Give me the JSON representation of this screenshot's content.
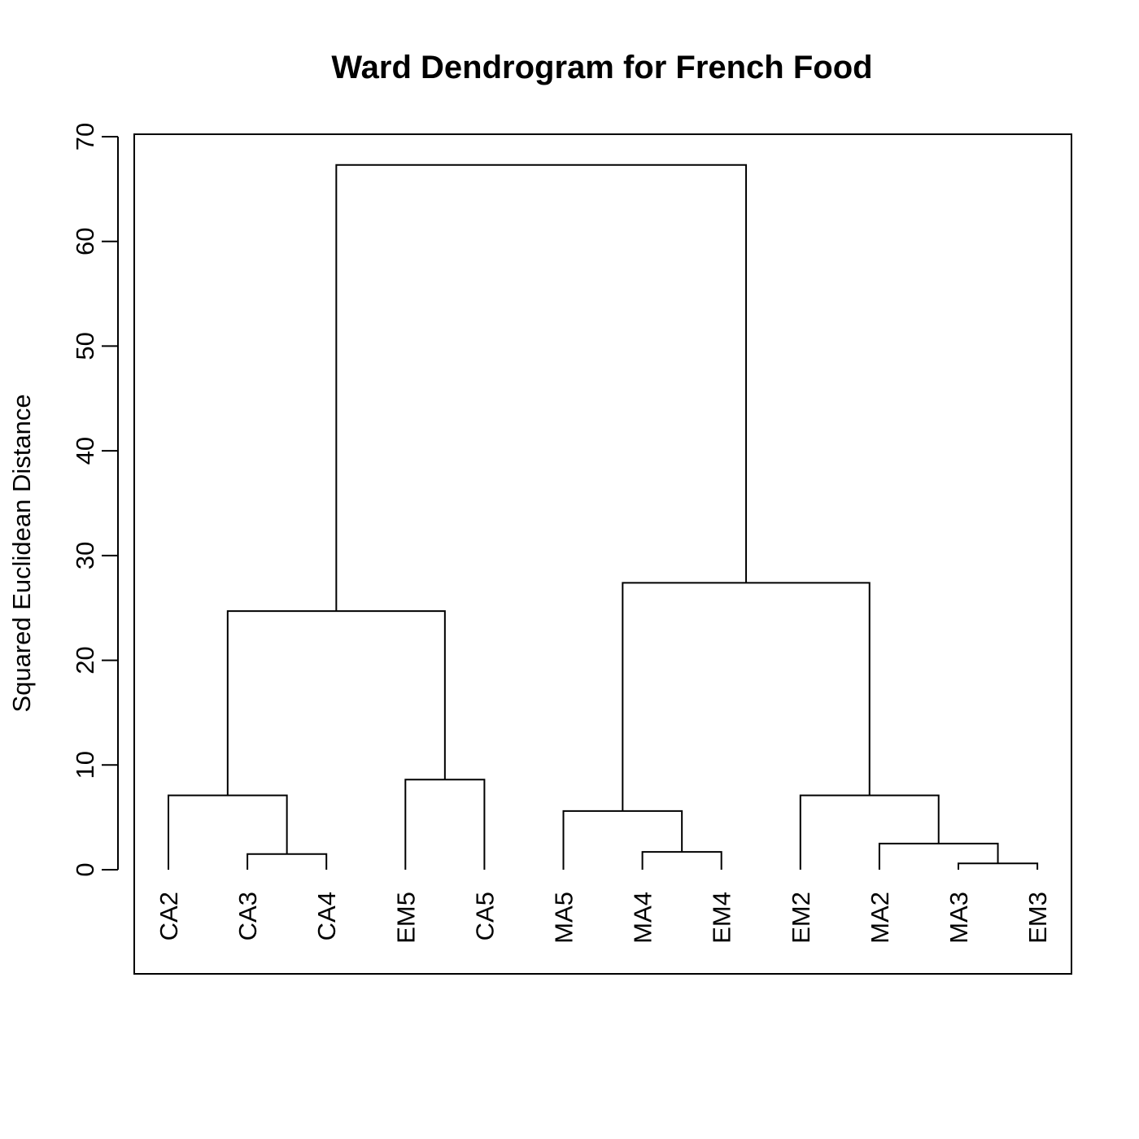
{
  "chart_data": {
    "type": "dendrogram",
    "title": "Ward Dendrogram for French Food",
    "ylabel": "Squared Euclidean Distance",
    "xlabel": "",
    "ylim": [
      0,
      70
    ],
    "yticks": [
      0,
      10,
      20,
      30,
      40,
      50,
      60,
      70
    ],
    "leaves": [
      "CA2",
      "CA3",
      "CA4",
      "EM5",
      "CA5",
      "MA5",
      "MA4",
      "EM4",
      "EM2",
      "MA2",
      "MA3",
      "EM3"
    ],
    "merges": [
      {
        "left": "CA3",
        "right": "CA4",
        "height": 1.5
      },
      {
        "left": "CA2",
        "right": "CA3+CA4",
        "height": 7.1
      },
      {
        "left": "EM5",
        "right": "CA5",
        "height": 8.6
      },
      {
        "left": "CA2+CA3+CA4",
        "right": "EM5+CA5",
        "height": 24.7
      },
      {
        "left": "MA4",
        "right": "EM4",
        "height": 1.7
      },
      {
        "left": "MA5",
        "right": "MA4+EM4",
        "height": 5.6
      },
      {
        "left": "MA3",
        "right": "EM3",
        "height": 0.6
      },
      {
        "left": "MA2",
        "right": "MA3+EM3",
        "height": 2.5
      },
      {
        "left": "EM2",
        "right": "MA2+MA3+EM3",
        "height": 7.1
      },
      {
        "left": "MA5+MA4+EM4",
        "right": "EM2+MA2+MA3+EM3",
        "height": 27.4
      },
      {
        "left": "CA2+CA3+CA4+EM5+CA5",
        "right": "MA5+MA4+EM4+EM2+MA2+MA3+EM3",
        "height": 67.3
      }
    ],
    "grid": false,
    "legend": "none"
  }
}
